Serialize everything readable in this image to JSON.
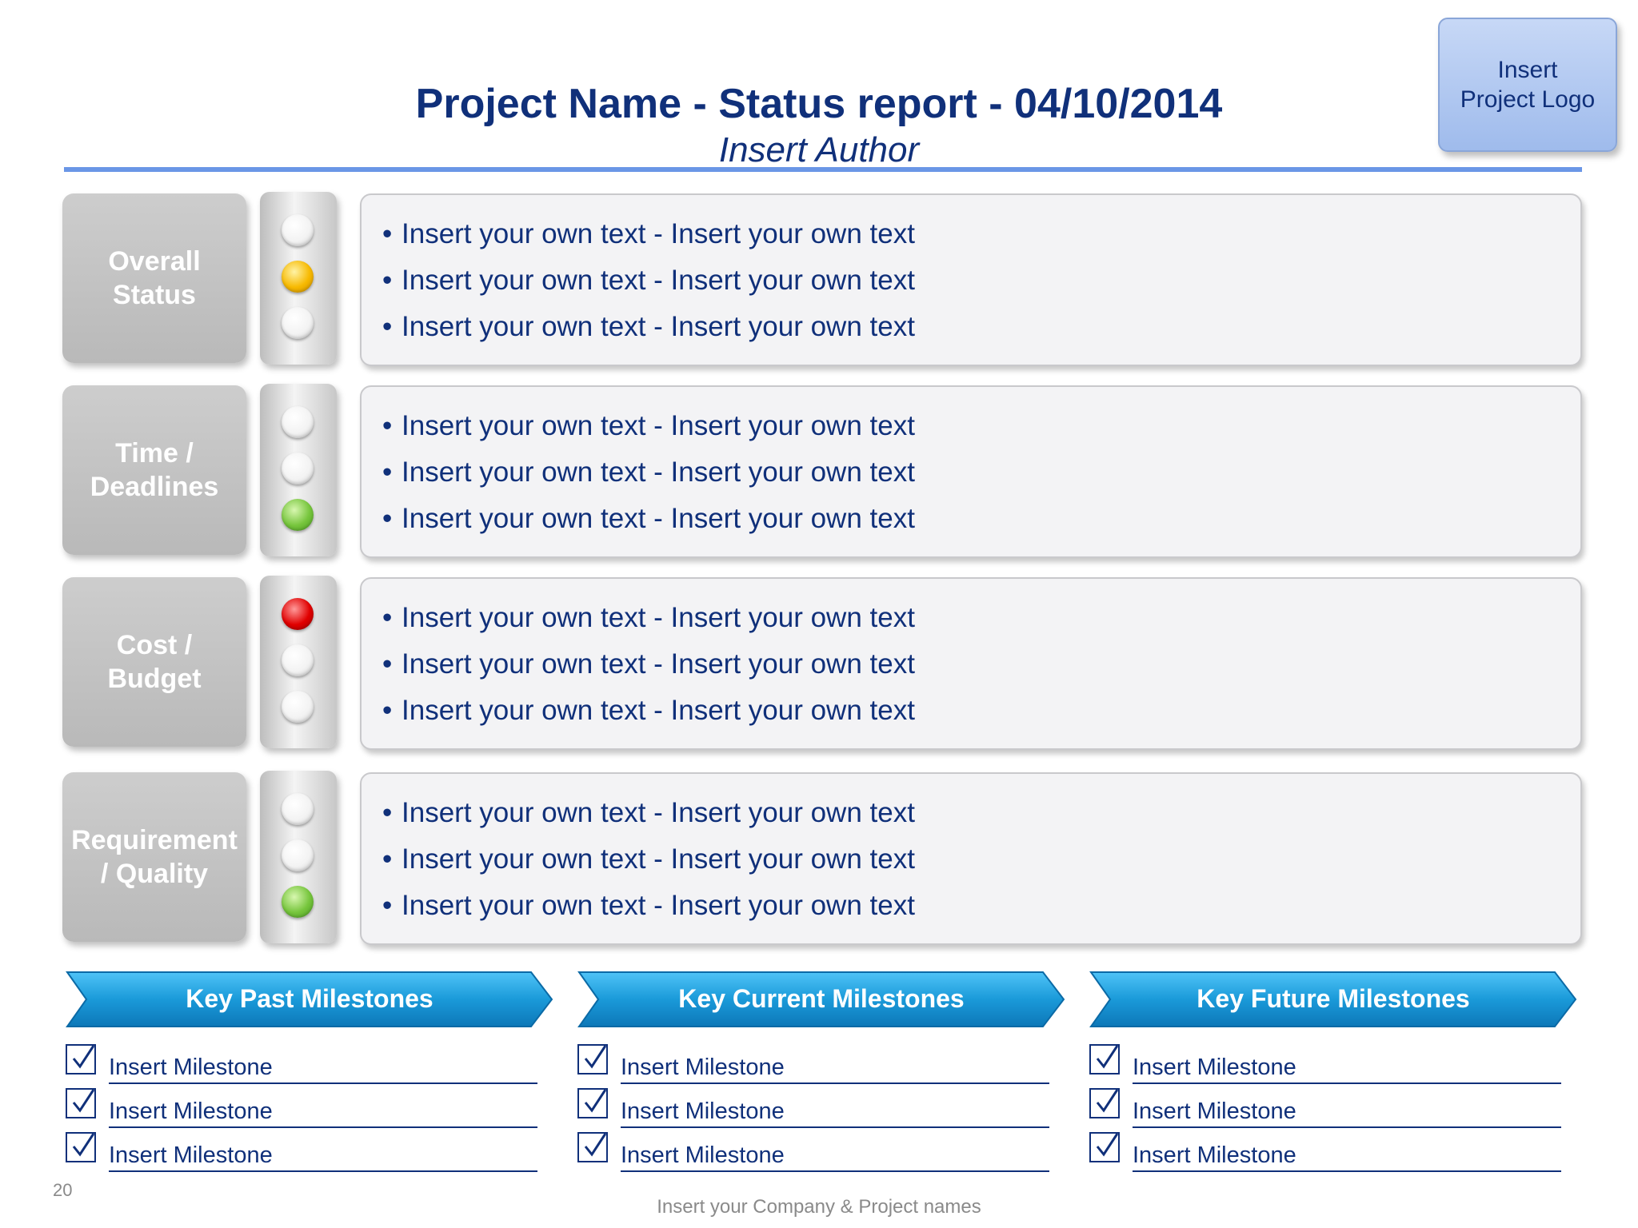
{
  "header": {
    "title": "Project Name - Status report - 04/10/2014",
    "author": "Insert Author",
    "logo_line1": "Insert",
    "logo_line2": "Project Logo"
  },
  "status_rows": [
    {
      "label_line1": "Overall",
      "label_line2": "Status",
      "lights": [
        "off",
        "amber",
        "off"
      ],
      "bullets": [
        "Insert your own text - Insert your own text",
        "Insert your own text - Insert your own text",
        "Insert your own text - Insert your own text"
      ]
    },
    {
      "label_line1": "Time /",
      "label_line2": "Deadlines",
      "lights": [
        "off",
        "off",
        "green"
      ],
      "bullets": [
        "Insert your own text - Insert your own text",
        "Insert your own text - Insert your own text",
        "Insert your own text - Insert your own text"
      ]
    },
    {
      "label_line1": "Cost /",
      "label_line2": "Budget",
      "lights": [
        "red",
        "off",
        "off"
      ],
      "bullets": [
        "Insert your own text - Insert your own text",
        "Insert your own text - Insert your own text",
        "Insert your own text - Insert your own text"
      ]
    },
    {
      "label_line1": "Requirement",
      "label_line2": "/ Quality",
      "lights": [
        "off",
        "off",
        "green"
      ],
      "bullets": [
        "Insert your own text - Insert your own text",
        "Insert your own text - Insert your own text",
        "Insert your own text - Insert your own text"
      ]
    }
  ],
  "milestones": [
    {
      "title": "Key Past Milestones",
      "items": [
        "Insert Milestone",
        "Insert Milestone",
        "Insert Milestone"
      ]
    },
    {
      "title": "Key Current Milestones",
      "items": [
        "Insert Milestone",
        "Insert Milestone",
        "Insert Milestone"
      ]
    },
    {
      "title": "Key Future Milestones",
      "items": [
        "Insert Milestone",
        "Insert Milestone",
        "Insert Milestone"
      ]
    }
  ],
  "footer": {
    "page_number": "20",
    "company": "Insert your Company & Project names"
  },
  "colors": {
    "title": "#10307a",
    "rule": "#6a96e6",
    "milestone_banner": "#1a9ad9"
  }
}
